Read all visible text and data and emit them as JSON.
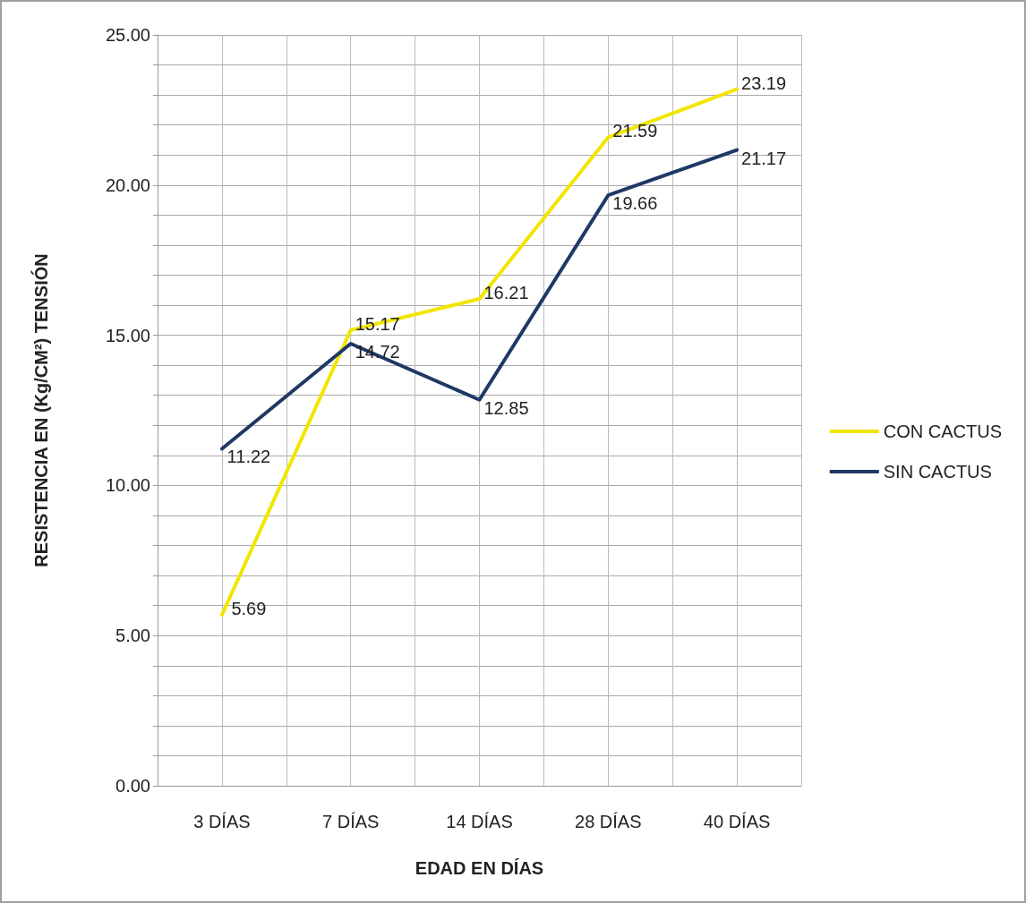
{
  "chart_data": {
    "type": "line",
    "xlabel": "EDAD EN DÍAS",
    "ylabel": "RESISTENCIA EN (Kg/CM²) TENSIÓN",
    "categories": [
      "3 DÍAS",
      "7 DÍAS",
      "14 DÍAS",
      "28 DÍAS",
      "40 DÍAS"
    ],
    "series": [
      {
        "name": "CON CACTUS",
        "color": "#f2e600",
        "values": [
          5.69,
          15.17,
          16.21,
          21.59,
          23.19
        ]
      },
      {
        "name": "SIN CACTUS",
        "color": "#1f3864",
        "values": [
          11.22,
          14.72,
          12.85,
          19.66,
          21.17
        ]
      }
    ],
    "ylim": [
      0,
      25
    ],
    "yticks": [
      {
        "value": 0,
        "label": "0.00"
      },
      {
        "value": 1,
        "label": null
      },
      {
        "value": 2,
        "label": null
      },
      {
        "value": 3,
        "label": null
      },
      {
        "value": 4,
        "label": null
      },
      {
        "value": 5,
        "label": "5.00"
      },
      {
        "value": 6,
        "label": null
      },
      {
        "value": 7,
        "label": null
      },
      {
        "value": 8,
        "label": null
      },
      {
        "value": 9,
        "label": null
      },
      {
        "value": 10,
        "label": "10.00"
      },
      {
        "value": 11,
        "label": null
      },
      {
        "value": 12,
        "label": null
      },
      {
        "value": 13,
        "label": null
      },
      {
        "value": 14,
        "label": null
      },
      {
        "value": 15,
        "label": "15.00"
      },
      {
        "value": 16,
        "label": null
      },
      {
        "value": 17,
        "label": null
      },
      {
        "value": 18,
        "label": null
      },
      {
        "value": 19,
        "label": null
      },
      {
        "value": 20,
        "label": "20.00"
      },
      {
        "value": 21,
        "label": null
      },
      {
        "value": 22,
        "label": null
      },
      {
        "value": 23,
        "label": null
      },
      {
        "value": 24,
        "label": null
      },
      {
        "value": 25,
        "label": "25.00"
      }
    ],
    "grid": true,
    "legend": "right",
    "marker": "none",
    "line_style": "solid",
    "data_labels": true
  }
}
